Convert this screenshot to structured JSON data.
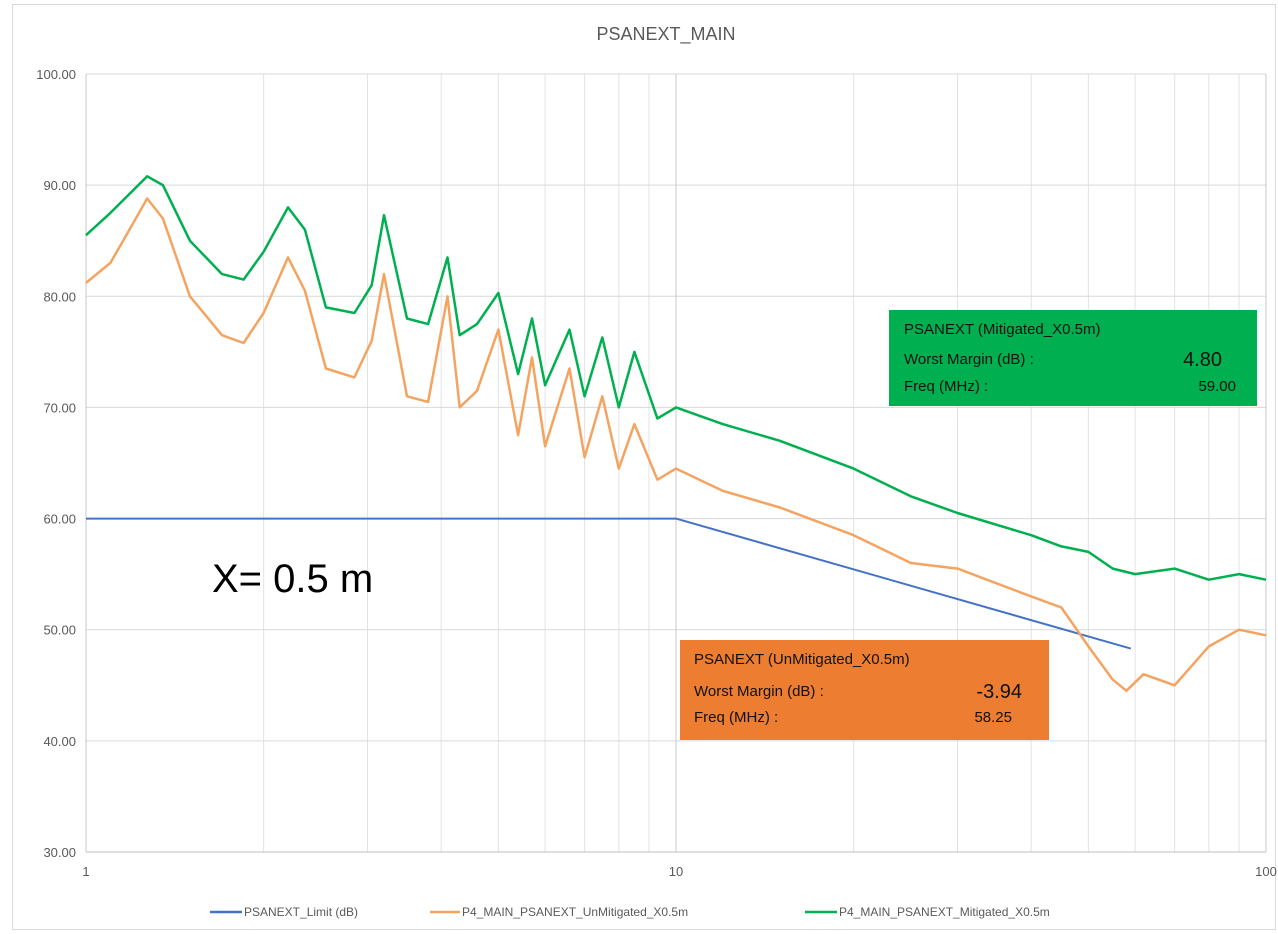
{
  "chart_data": {
    "type": "line",
    "title": "PSANEXT_MAIN",
    "xscale": "log",
    "xlim": [
      1,
      100
    ],
    "ylim": [
      30,
      100
    ],
    "x_ticks": [
      "1",
      "10",
      "100"
    ],
    "y_ticks": [
      "30.00",
      "40.00",
      "50.00",
      "60.00",
      "70.00",
      "80.00",
      "90.00",
      "100.00"
    ],
    "grid": true,
    "legend_position": "bottom",
    "series": [
      {
        "name": "PSANEXT_Limit (dB)",
        "color": "#4472c4",
        "x": [
          1,
          10,
          59
        ],
        "y": [
          60.0,
          60.0,
          48.3
        ]
      },
      {
        "name": "P4_MAIN_PSANEXT_UnMitigated_X0.5m",
        "color": "#f4a460",
        "x": [
          1,
          1.1,
          1.2,
          1.27,
          1.35,
          1.5,
          1.7,
          1.85,
          2.0,
          2.2,
          2.35,
          2.55,
          2.85,
          3.05,
          3.2,
          3.5,
          3.8,
          4.1,
          4.3,
          4.6,
          5.0,
          5.4,
          5.7,
          6.0,
          6.6,
          7.0,
          7.5,
          8.0,
          8.5,
          9.3,
          10,
          12,
          15,
          20,
          25,
          30,
          40,
          45,
          50,
          55,
          58,
          62,
          70,
          80,
          90,
          100
        ],
        "y": [
          81.2,
          83.0,
          86.5,
          88.8,
          87.0,
          80.0,
          76.5,
          75.8,
          78.5,
          83.5,
          80.5,
          73.5,
          72.7,
          76.0,
          82.0,
          71.0,
          70.5,
          80.0,
          70.0,
          71.5,
          77.0,
          67.5,
          74.5,
          66.5,
          73.5,
          65.5,
          71.0,
          64.5,
          68.5,
          63.5,
          64.5,
          62.5,
          61.0,
          58.5,
          56.0,
          55.5,
          53.0,
          52.0,
          48.5,
          45.5,
          44.5,
          46.0,
          45.0,
          48.5,
          50.0,
          49.5
        ]
      },
      {
        "name": "P4_MAIN_PSANEXT_Mitigated_X0.5m",
        "color": "#00b050",
        "x": [
          1,
          1.1,
          1.2,
          1.27,
          1.35,
          1.5,
          1.7,
          1.85,
          2.0,
          2.2,
          2.35,
          2.55,
          2.85,
          3.05,
          3.2,
          3.5,
          3.8,
          4.1,
          4.3,
          4.6,
          5.0,
          5.4,
          5.7,
          6.0,
          6.6,
          7.0,
          7.5,
          8.0,
          8.5,
          9.3,
          10,
          12,
          15,
          20,
          25,
          30,
          40,
          45,
          50,
          55,
          60,
          70,
          80,
          90,
          100
        ],
        "y": [
          85.5,
          87.5,
          89.5,
          90.8,
          90.0,
          85.0,
          82.0,
          81.5,
          84.0,
          88.0,
          86.0,
          79.0,
          78.5,
          81.0,
          87.3,
          78.0,
          77.5,
          83.5,
          76.5,
          77.5,
          80.3,
          73.0,
          78.0,
          72.0,
          77.0,
          71.0,
          76.3,
          70.0,
          75.0,
          69.0,
          70.0,
          68.5,
          67.0,
          64.5,
          62.0,
          60.5,
          58.5,
          57.5,
          57.0,
          55.5,
          55.0,
          55.5,
          54.5,
          55.0,
          54.5
        ]
      }
    ]
  },
  "annotations": {
    "distance_label": "X= 0.5 m"
  },
  "info_boxes": {
    "mitigated": {
      "color": "#00b050",
      "title": "PSANEXT (Mitigated_X0.5m)",
      "margin_label": "Worst Margin (dB) :",
      "margin_value": "4.80",
      "freq_label": "Freq (MHz) :",
      "freq_value": "59.00"
    },
    "unmitigated": {
      "color": "#ed7d31",
      "title": "PSANEXT (UnMitigated_X0.5m)",
      "margin_label": "Worst Margin (dB) :",
      "margin_value": "-3.94",
      "freq_label": "Freq (MHz) :",
      "freq_value": "58.25"
    }
  },
  "legend": {
    "items": [
      {
        "label": "PSANEXT_Limit (dB)",
        "color": "#4472c4"
      },
      {
        "label": "P4_MAIN_PSANEXT_UnMitigated_X0.5m",
        "color": "#f4a460"
      },
      {
        "label": "P4_MAIN_PSANEXT_Mitigated_X0.5m",
        "color": "#00b050"
      }
    ]
  }
}
